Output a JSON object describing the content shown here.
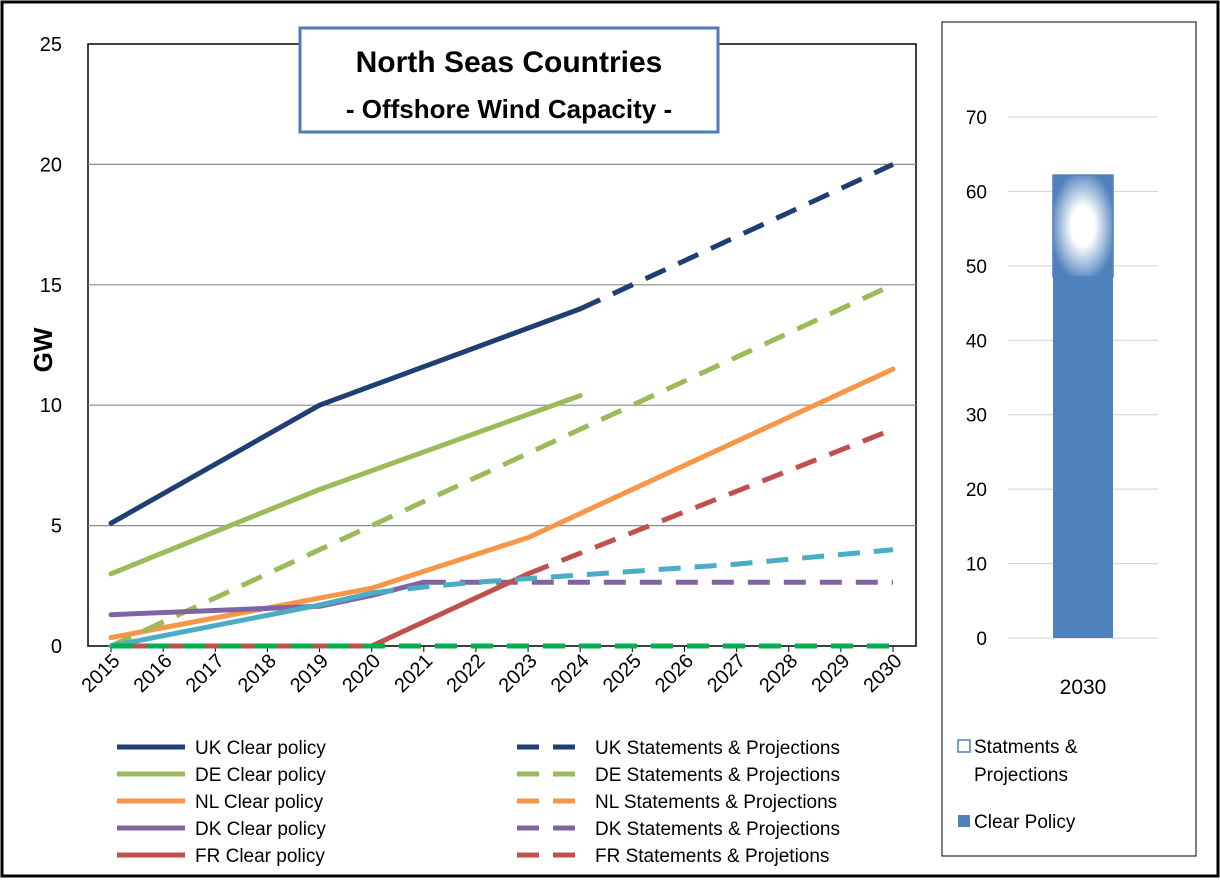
{
  "chart_data": [
    {
      "type": "line",
      "title": "North Seas Countries",
      "subtitle": "- Offshore Wind Capacity -",
      "xlabel": "",
      "ylabel": "GW",
      "ylim": [
        0,
        25
      ],
      "yticks": [
        0,
        5,
        10,
        15,
        20,
        25
      ],
      "categories": [
        "2015",
        "2016",
        "2017",
        "2018",
        "2019",
        "2020",
        "2021",
        "2022",
        "2023",
        "2024",
        "2025",
        "2026",
        "2027",
        "2028",
        "2029",
        "2030"
      ],
      "grid": "horizontal",
      "legend_position": "bottom",
      "series": [
        {
          "name": "UK Clear policy",
          "style": "solid",
          "color": "#1f3f74",
          "x": [
            "2015",
            "2019",
            "2024"
          ],
          "values": [
            5.1,
            10.0,
            14.0
          ]
        },
        {
          "name": "UK Statements & Projections",
          "style": "dashed",
          "color": "#1f3f74",
          "x": [
            "2024",
            "2030"
          ],
          "values": [
            14.0,
            20.0
          ]
        },
        {
          "name": "DE Clear policy",
          "style": "solid",
          "color": "#9bbb59",
          "x": [
            "2015",
            "2019",
            "2024"
          ],
          "values": [
            3.0,
            6.5,
            10.4
          ]
        },
        {
          "name": "DE Statements & Projections",
          "style": "dashed",
          "color": "#9bbb59",
          "x": [
            "2015",
            "2030"
          ],
          "values": [
            0.0,
            15.0
          ]
        },
        {
          "name": "NL Clear policy",
          "style": "solid",
          "color": "#f79646",
          "x": [
            "2015",
            "2020",
            "2023",
            "2030"
          ],
          "values": [
            0.35,
            2.4,
            4.5,
            11.5
          ]
        },
        {
          "name": "NL Statements & Projections",
          "style": "dashed",
          "color": "#f79646",
          "x": [],
          "values": []
        },
        {
          "name": "DK Clear policy",
          "style": "solid",
          "color": "#8064a2",
          "x": [
            "2015",
            "2019",
            "2020",
            "2021"
          ],
          "values": [
            1.3,
            1.65,
            2.1,
            2.65
          ]
        },
        {
          "name": "DK Statements & Projections",
          "style": "dashed",
          "color": "#8064a2",
          "x": [
            "2021",
            "2030"
          ],
          "values": [
            2.65,
            2.65
          ]
        },
        {
          "name": "FR Clear policy",
          "style": "solid",
          "color": "#c0504d",
          "x": [
            "2015",
            "2020",
            "2023"
          ],
          "values": [
            0.0,
            0.0,
            3.0
          ]
        },
        {
          "name": "FR Statements & Projetions",
          "style": "dashed",
          "color": "#c0504d",
          "x": [
            "2023",
            "2030"
          ],
          "values": [
            3.0,
            9.0
          ]
        },
        {
          "name": "",
          "style": "solid",
          "color": "#4bacc6",
          "x": [
            "2015",
            "2019",
            "2020"
          ],
          "values": [
            0.0,
            1.7,
            2.2
          ]
        },
        {
          "name": "",
          "style": "dashed",
          "color": "#4bacc6",
          "x": [
            "2020",
            "2021",
            "2022",
            "2023",
            "2024",
            "2025",
            "2026",
            "2027",
            "2028",
            "2029",
            "2030"
          ],
          "values": [
            2.2,
            2.45,
            2.65,
            2.8,
            2.95,
            3.1,
            3.25,
            3.4,
            3.6,
            3.8,
            4.0
          ]
        },
        {
          "name": "",
          "style": "dashed",
          "color": "#00b050",
          "x": [
            "2015",
            "2030"
          ],
          "values": [
            0.0,
            0.0
          ]
        }
      ]
    },
    {
      "type": "bar",
      "stacked": true,
      "categories": [
        "2030"
      ],
      "ylim": [
        0,
        70
      ],
      "yticks": [
        0,
        10,
        20,
        30,
        40,
        50,
        60,
        70
      ],
      "grid": "horizontal",
      "legend_position": "bottom",
      "series": [
        {
          "name": "Clear Policy",
          "color": "#4f81bd",
          "values": [
            48.5
          ]
        },
        {
          "name": "Statments & Projections",
          "color": "#c5d9f1",
          "values": [
            13.7
          ]
        }
      ]
    }
  ]
}
